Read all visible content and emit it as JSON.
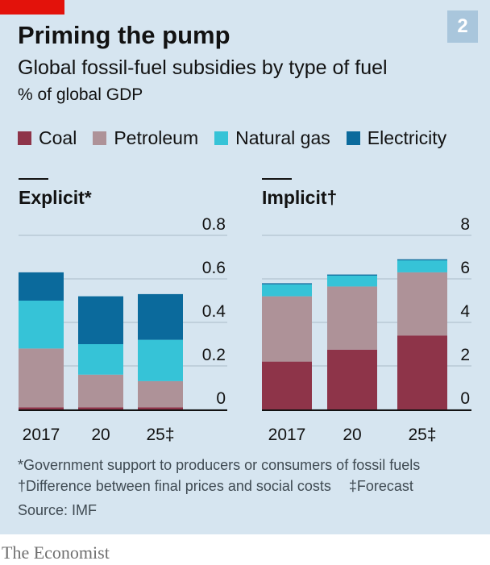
{
  "header": {
    "badge": "2",
    "title": "Priming the pump",
    "subtitle": "Global fossil-fuel subsidies by type of fuel",
    "unit": "% of global GDP"
  },
  "colors": {
    "Coal": "#8e3449",
    "Petroleum": "#ae9298",
    "Natural gas": "#36c3d7",
    "Electricity": "#0b6a9c"
  },
  "chart_data": [
    {
      "type": "bar",
      "stacked": true,
      "title": "Explicit*",
      "categories": [
        "2017",
        "20",
        "25‡"
      ],
      "ylim": [
        0,
        0.8
      ],
      "yticks": [
        "0",
        "0.2",
        "0.4",
        "0.6",
        "0.8"
      ],
      "series": [
        {
          "name": "Coal",
          "values": [
            0.01,
            0.01,
            0.01
          ]
        },
        {
          "name": "Petroleum",
          "values": [
            0.27,
            0.15,
            0.12
          ]
        },
        {
          "name": "Natural gas",
          "values": [
            0.22,
            0.14,
            0.19
          ]
        },
        {
          "name": "Electricity",
          "values": [
            0.13,
            0.22,
            0.21
          ]
        }
      ]
    },
    {
      "type": "bar",
      "stacked": true,
      "title": "Implicit†",
      "categories": [
        "2017",
        "20",
        "25‡"
      ],
      "ylim": [
        0,
        8
      ],
      "yticks": [
        "0",
        "2",
        "4",
        "6",
        "8"
      ],
      "series": [
        {
          "name": "Coal",
          "values": [
            2.2,
            2.75,
            3.4
          ]
        },
        {
          "name": "Petroleum",
          "values": [
            3.0,
            2.9,
            2.9
          ]
        },
        {
          "name": "Natural gas",
          "values": [
            0.55,
            0.5,
            0.55
          ]
        },
        {
          "name": "Electricity",
          "values": [
            0.05,
            0.05,
            0.05
          ]
        }
      ]
    }
  ],
  "footnotes": {
    "explicit": "*Government support to producers or consumers of fossil fuels",
    "implicit": "†Difference between final prices and social costs",
    "forecast": "‡Forecast",
    "source": "Source: IMF"
  },
  "brand": "The Economist"
}
